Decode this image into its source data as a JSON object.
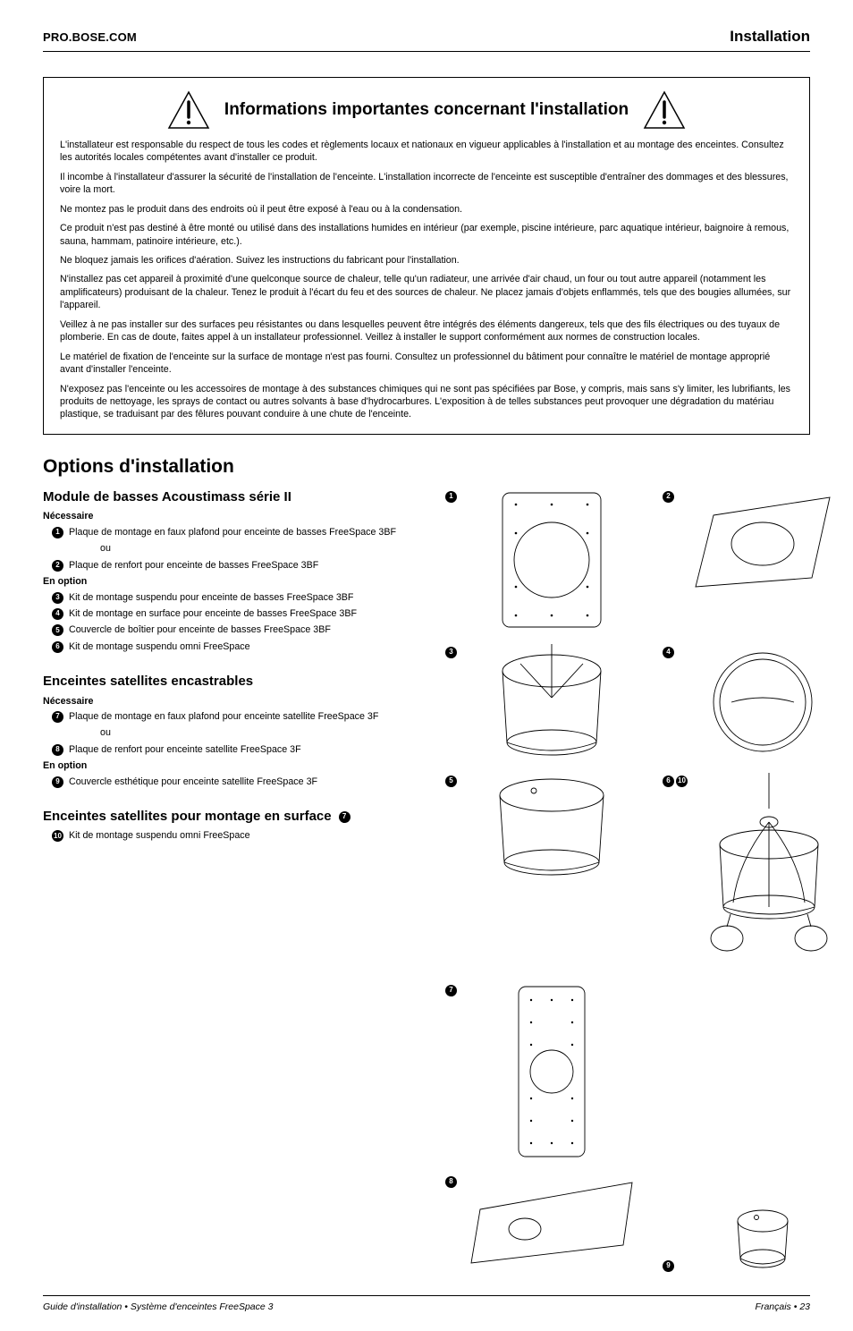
{
  "header": {
    "site": "PRO.BOSE.COM",
    "section": "Installation"
  },
  "warning": {
    "title": "Informations importantes concernant l'installation",
    "paras": [
      "L'installateur est responsable du respect de tous les codes et règlements locaux et nationaux en vigueur applicables à l'installation et au montage des enceintes. Consultez les autorités locales compétentes avant d'installer ce produit.",
      "Il incombe à l'installateur d'assurer la sécurité de l'installation de l'enceinte. L'installation incorrecte de l'enceinte est susceptible d'entraîner des dommages et des blessures, voire la mort.",
      "Ne montez pas le produit dans des endroits où il peut être exposé à l'eau ou à la condensation.",
      "Ce produit n'est pas destiné à être monté ou utilisé dans des installations humides en intérieur (par exemple, piscine intérieure, parc aquatique intérieur, baignoire à remous, sauna, hammam, patinoire intérieure, etc.).",
      "Ne bloquez jamais les orifices d'aération. Suivez les instructions du fabricant pour l'installation.",
      "N'installez pas cet appareil à proximité d'une quelconque source de chaleur, telle qu'un radiateur, une arrivée d'air chaud, un four ou tout autre appareil (notamment les amplificateurs) produisant de la chaleur. Tenez le produit à l'écart du feu et des sources de chaleur. Ne placez jamais d'objets enflammés, tels que des bougies allumées, sur l'appareil.",
      "Veillez à ne pas installer sur des surfaces peu résistantes ou dans lesquelles peuvent être intégrés des éléments dangereux, tels que des fils électriques ou des tuyaux de plomberie. En cas de doute, faites appel à un installateur professionnel. Veillez à installer le support conformément aux normes de construction locales.",
      "Le matériel de fixation de l'enceinte sur la surface de montage n'est pas fourni. Consultez un professionnel du bâtiment pour connaître le matériel de montage approprié avant d'installer l'enceinte.",
      "N'exposez pas l'enceinte ou les accessoires de montage à des substances chimiques qui ne sont pas spécifiées par Bose, y compris, mais sans s'y limiter, les lubrifiants, les produits de nettoyage, les sprays de contact ou autres solvants à base d'hydrocarbures. L'exposition à de telles substances peut provoquer une dégradation du matériau plastique, se traduisant par des fêlures pouvant conduire à une chute de l'enceinte."
    ]
  },
  "options": {
    "title": "Options d'installation",
    "sections": [
      {
        "heading": "Module de basses Acoustimass série II",
        "groups": [
          {
            "label": "Nécessaire",
            "items": [
              {
                "n": "1",
                "text": "Plaque de montage en faux plafond pour enceinte de basses FreeSpace 3BF"
              },
              {
                "ou": "ou"
              },
              {
                "n": "2",
                "text": "Plaque de renfort pour enceinte de basses FreeSpace 3BF"
              }
            ]
          },
          {
            "label": "En option",
            "items": [
              {
                "n": "3",
                "text": "Kit de montage suspendu pour enceinte de basses FreeSpace 3BF"
              },
              {
                "n": "4",
                "text": "Kit de montage en surface pour enceinte de basses FreeSpace 3BF"
              },
              {
                "n": "5",
                "text": "Couvercle de boîtier pour enceinte de basses FreeSpace 3BF"
              },
              {
                "n": "6",
                "text": "Kit de montage suspendu omni FreeSpace"
              }
            ]
          }
        ]
      },
      {
        "heading": "Enceintes satellites encastrables",
        "groups": [
          {
            "label": "Nécessaire",
            "items": [
              {
                "n": "7",
                "text": "Plaque de montage en faux plafond pour enceinte satellite FreeSpace 3F"
              },
              {
                "ou": "ou"
              },
              {
                "n": "8",
                "text": "Plaque de renfort pour enceinte satellite FreeSpace 3F"
              }
            ]
          },
          {
            "label": "En option",
            "items": [
              {
                "n": "9",
                "text": "Couvercle esthétique pour enceinte satellite FreeSpace 3F"
              }
            ]
          }
        ]
      },
      {
        "heading": "Enceintes satellites pour montage en surface",
        "heading_bullet": "7",
        "groups": [
          {
            "label": "",
            "items": [
              {
                "n": "10",
                "text": "Kit de montage suspendu omni FreeSpace"
              }
            ]
          }
        ]
      }
    ]
  },
  "diagrams": [
    {
      "bullets": [
        "1"
      ],
      "shape": "plate_rect_circle",
      "side": "left"
    },
    {
      "bullets": [
        "2"
      ],
      "shape": "tile_persp_circle",
      "side": "right"
    },
    {
      "bullets": [
        "3"
      ],
      "shape": "bucket_hanging",
      "side": "left"
    },
    {
      "bullets": [
        "4"
      ],
      "shape": "ring_surface",
      "side": "right"
    },
    {
      "bullets": [
        "5"
      ],
      "shape": "bucket_cover",
      "side": "left"
    },
    {
      "bullets": [
        "6",
        "10"
      ],
      "shape": "omni_pendant",
      "side": "right"
    },
    {
      "bullets": [
        "7"
      ],
      "shape": "tall_plate_rect_circle",
      "side": "left"
    },
    {
      "bullets": [
        "8"
      ],
      "shape": "long_tile_persp",
      "side": "right"
    },
    {
      "bullets": [
        "9"
      ],
      "shape": "small_cover",
      "side": "right"
    }
  ],
  "footer": {
    "left": "Guide d'installation • Système d'enceintes FreeSpace 3",
    "right": "Français • 23"
  },
  "colors": {
    "text": "#000000",
    "bg": "#ffffff",
    "stroke": "#000000"
  }
}
